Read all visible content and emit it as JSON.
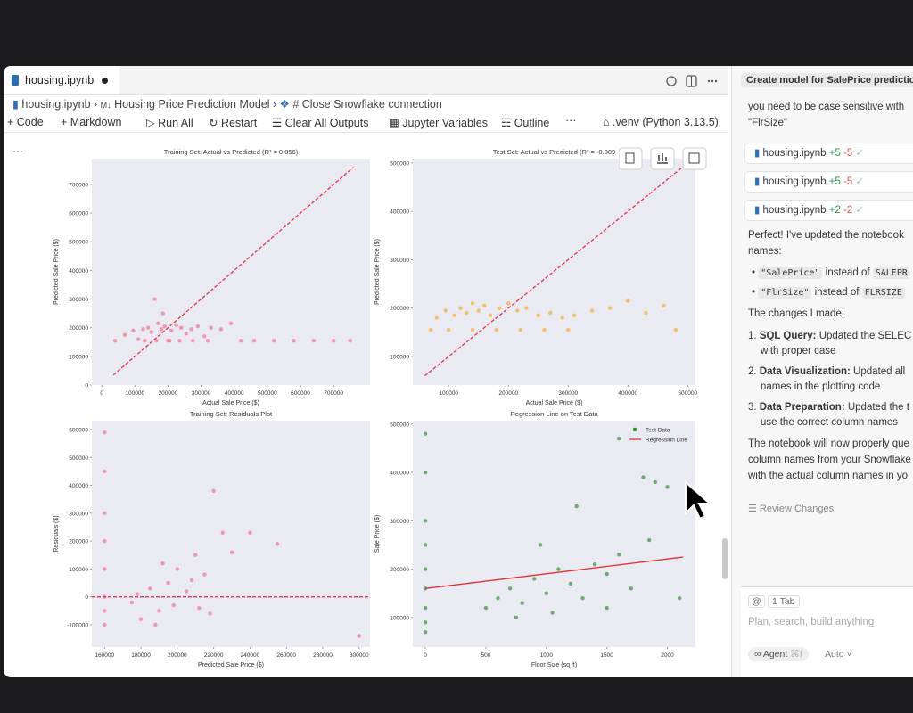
{
  "tab": {
    "title": "housing.ipynb"
  },
  "breadcrumb": [
    "housing.ipynb",
    "Housing Price Prediction Model",
    "# Close Snowflake connection"
  ],
  "toolbar": [
    "Code",
    "Markdown",
    "Run All",
    "Restart",
    "Clear All Outputs",
    "Jupyter Variables",
    "Outline",
    ".venv (Python 3.13.5)"
  ],
  "chat": {
    "header": "Create model for SalePrice predictio",
    "intro": [
      "you need to be case sensitive with",
      "\"FlrSize\""
    ],
    "files": [
      {
        "name": "housing.ipynb",
        "added": "+5",
        "removed": "-5"
      },
      {
        "name": "housing.ipynb",
        "added": "+5",
        "removed": "-5"
      },
      {
        "name": "housing.ipynb",
        "added": "+2",
        "removed": "-2"
      }
    ],
    "summary": [
      "Perfect! I've updated the notebook",
      "names:"
    ],
    "bullets": [
      {
        "code": "\"SalePrice\"",
        "text": "instead of",
        "code2": "SALEPR"
      },
      {
        "code": "\"FlrSize\"",
        "text": "instead of",
        "code2": "FLRSIZE"
      }
    ],
    "changes_heading": "The changes I made:",
    "changes": [
      {
        "number": "1.",
        "label": "SQL Query:",
        "lines": [
          "Updated the SELEC",
          "with proper case"
        ]
      },
      {
        "number": "2.",
        "label": "Data Visualization:",
        "lines": [
          "Updated all",
          "names in the plotting code"
        ]
      },
      {
        "number": "3.",
        "label": "Data Preparation:",
        "lines": [
          "Updated the t",
          "use the correct column names"
        ]
      }
    ],
    "conclusion": [
      "The notebook will now properly que",
      "column names from your Snowflake",
      "with the actual column names in yo"
    ],
    "review": "Review Changes",
    "input": {
      "mention": "@",
      "tab": "1 Tab",
      "placeholder": "Plan, search, build anything",
      "mode": "Agent",
      "shortcut": "⌘I",
      "model": "Auto"
    }
  },
  "chart_data": [
    {
      "type": "scatter",
      "title": "Training Set: Actual vs Predicted (R² = 0.056)",
      "x_label": "Actual Sale Price ($)",
      "y_label": "Predicted Sale Price ($)",
      "xlim": [
        -30000,
        810000
      ],
      "ylim": [
        0,
        790000
      ],
      "xticks": [
        0,
        100000,
        200000,
        300000,
        400000,
        500000,
        600000,
        700000
      ],
      "yticks": [
        0,
        100000,
        200000,
        300000,
        400000,
        500000,
        600000,
        700000
      ],
      "series": [
        {
          "mode": "markers",
          "color": "#f06b85",
          "x": [
            40000,
            70000,
            95000,
            110000,
            125000,
            140000,
            150000,
            160000,
            170000,
            180000,
            190000,
            200000,
            210000,
            225000,
            240000,
            255000,
            270000,
            290000,
            310000,
            330000,
            360000,
            390000,
            420000,
            460000,
            520000,
            580000,
            640000,
            700000,
            750000,
            130000,
            165000,
            185000,
            205000,
            235000,
            275000,
            320000
          ],
          "values": [
            155000,
            175000,
            190000,
            160000,
            195000,
            200000,
            185000,
            300000,
            215000,
            195000,
            205000,
            155000,
            190000,
            210000,
            200000,
            180000,
            195000,
            205000,
            170000,
            200000,
            195000,
            215000,
            155000,
            155000,
            155000,
            155000,
            155000,
            155000,
            155000,
            155000,
            155000,
            250000,
            155000,
            155000,
            155000,
            155000
          ]
        },
        {
          "mode": "lines",
          "style": "dashed",
          "color": "#e0324b",
          "x": [
            35000,
            760000
          ],
          "values": [
            35000,
            760000
          ]
        }
      ]
    },
    {
      "type": "scatter",
      "title": "Test Set: Actual vs Predicted (R² = -0.009",
      "x_label": "Actual Sale Price ($)",
      "y_label": "Predicted Sale Price ($)",
      "xlim": [
        40000,
        513000
      ],
      "ylim": [
        41000,
        509000
      ],
      "xticks": [
        100000,
        200000,
        300000,
        400000,
        500000
      ],
      "yticks": [
        100000,
        200000,
        300000,
        400000,
        500000
      ],
      "series": [
        {
          "mode": "markers",
          "color": "#f7a823",
          "x": [
            70000,
            80000,
            95000,
            110000,
            120000,
            130000,
            140000,
            150000,
            160000,
            170000,
            185000,
            200000,
            215000,
            230000,
            250000,
            270000,
            290000,
            310000,
            340000,
            370000,
            400000,
            430000,
            460000,
            480000,
            100000,
            140000,
            180000,
            220000,
            260000,
            300000
          ],
          "values": [
            155000,
            180000,
            195000,
            185000,
            200000,
            190000,
            210000,
            195000,
            205000,
            185000,
            200000,
            210000,
            195000,
            200000,
            185000,
            190000,
            180000,
            185000,
            195000,
            200000,
            215000,
            190000,
            205000,
            155000,
            155000,
            155000,
            155000,
            155000,
            155000,
            155000
          ]
        },
        {
          "mode": "lines",
          "style": "dashed",
          "color": "#e0324b",
          "x": [
            60000,
            490000
          ],
          "values": [
            60000,
            490000
          ]
        }
      ]
    },
    {
      "type": "scatter",
      "title": "Training Set: Residuals Plot",
      "x_label": "Predicted Sale Price ($)",
      "y_label": "Residuals ($)",
      "xlim": [
        153000,
        306000
      ],
      "ylim": [
        -180000,
        632000
      ],
      "xticks": [
        160000,
        180000,
        200000,
        220000,
        240000,
        260000,
        280000,
        300000
      ],
      "yticks": [
        -100000,
        0,
        100000,
        200000,
        300000,
        400000,
        500000,
        600000
      ],
      "series": [
        {
          "mode": "markers",
          "color": "#f06b85",
          "x": [
            160000,
            160000,
            160000,
            160000,
            160000,
            160000,
            160000,
            160000,
            175000,
            180000,
            185000,
            190000,
            195000,
            200000,
            205000,
            210000,
            215000,
            220000,
            225000,
            230000,
            188000,
            198000,
            208000,
            218000,
            240000,
            255000,
            300000,
            178000,
            192000,
            212000
          ],
          "values": [
            590000,
            450000,
            300000,
            200000,
            100000,
            0,
            -50000,
            -100000,
            -20000,
            -80000,
            30000,
            -50000,
            50000,
            100000,
            20000,
            150000,
            80000,
            380000,
            230000,
            160000,
            -100000,
            -30000,
            60000,
            -60000,
            230000,
            190000,
            -140000,
            10000,
            120000,
            -40000
          ]
        },
        {
          "mode": "lines",
          "style": "dashed",
          "color": "#e0324b",
          "x": [
            153000,
            306000
          ],
          "values": [
            0,
            0
          ]
        }
      ]
    },
    {
      "type": "scatter",
      "title": "Regression Line on Test Data",
      "x_label": "Floor Size (sq ft)",
      "y_label": "Sale Price ($)",
      "xlim": [
        -104,
        2232
      ],
      "ylim": [
        39000,
        507000
      ],
      "xticks": [
        0,
        500,
        1000,
        1500,
        2000
      ],
      "yticks": [
        100000,
        200000,
        300000,
        400000,
        500000
      ],
      "legend": "upper right",
      "series": [
        {
          "name": "Test Data",
          "mode": "markers",
          "color": "#2a8a2a",
          "x": [
            0,
            0,
            0,
            0,
            0,
            0,
            0,
            0,
            0,
            500,
            600,
            700,
            800,
            900,
            1000,
            1050,
            1100,
            1200,
            1300,
            1400,
            1500,
            1600,
            1700,
            1800,
            1900,
            2000,
            2100,
            1600,
            1250,
            950,
            1500,
            1850,
            750
          ],
          "values": [
            480000,
            400000,
            300000,
            250000,
            200000,
            160000,
            120000,
            90000,
            70000,
            120000,
            140000,
            160000,
            130000,
            180000,
            150000,
            110000,
            200000,
            170000,
            140000,
            210000,
            190000,
            230000,
            160000,
            390000,
            380000,
            370000,
            140000,
            470000,
            330000,
            250000,
            120000,
            260000,
            100000
          ]
        },
        {
          "name": "Regression Line",
          "mode": "lines",
          "style": "solid",
          "color": "#e03030",
          "x": [
            0,
            2130
          ],
          "values": [
            160000,
            225000
          ]
        }
      ]
    }
  ]
}
